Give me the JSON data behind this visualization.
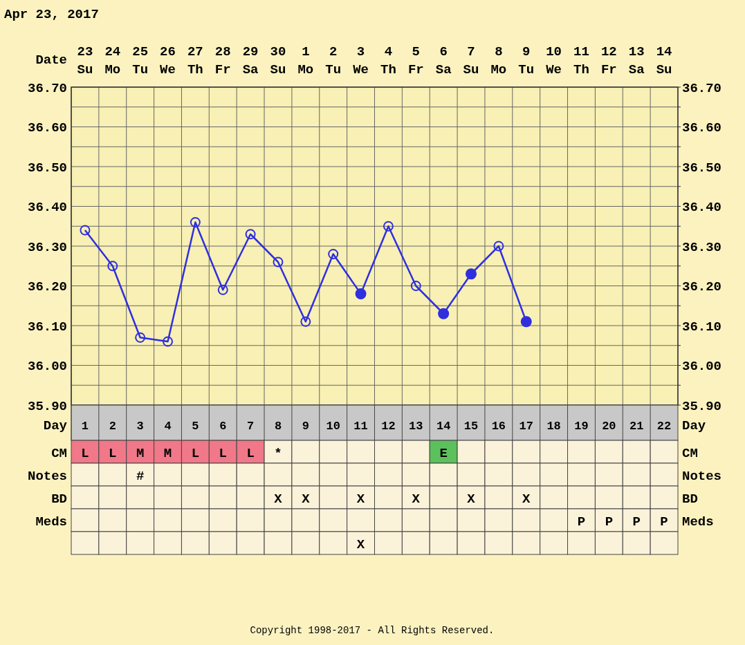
{
  "chart_data": [
    {
      "type": "line",
      "title": "Apr 23, 2017",
      "xlabel": "Date",
      "categories": [
        "23 Su",
        "24 Mo",
        "25 Tu",
        "26 We",
        "27 Th",
        "28 Fr",
        "29 Sa",
        "30 Su",
        "1 Mo",
        "2 Tu",
        "3 We",
        "4 Th",
        "5 Fr",
        "6 Sa",
        "7 Su",
        "8 Mo",
        "9 Tu",
        "10 We",
        "11 Th",
        "12 Fr",
        "13 Sa",
        "14 Su"
      ],
      "series": [
        {
          "type": "line",
          "color": "#2f2fe0",
          "marker": "circle",
          "values": [
            36.34,
            36.25,
            36.07,
            36.06,
            36.36,
            36.19,
            36.33,
            36.26,
            36.11,
            36.28,
            36.18,
            36.35,
            36.2,
            36.13,
            36.23,
            36.3,
            36.11,
            null,
            null,
            null,
            null,
            null
          ]
        },
        {
          "type": "scatter",
          "color": "#2f2fe0",
          "marker": "circle",
          "values": [
            null,
            null,
            null,
            null,
            null,
            null,
            null,
            null,
            null,
            null,
            36.18,
            null,
            null,
            36.13,
            36.23,
            null,
            36.11,
            null,
            null,
            null,
            null,
            null
          ]
        }
      ],
      "ylim": [
        35.9,
        36.7
      ],
      "yticks": [
        {
          "value": 35.9,
          "label": "35.90"
        },
        {
          "value": 35.95,
          "label": null
        },
        {
          "value": 36.0,
          "label": "36.00"
        },
        {
          "value": 36.05,
          "label": null
        },
        {
          "value": 36.1,
          "label": "36.10"
        },
        {
          "value": 36.15,
          "label": null
        },
        {
          "value": 36.2,
          "label": "36.20"
        },
        {
          "value": 36.25,
          "label": null
        },
        {
          "value": 36.3,
          "label": "36.30"
        },
        {
          "value": 36.35,
          "label": null
        },
        {
          "value": 36.4,
          "label": "36.40"
        },
        {
          "value": 36.45,
          "label": null
        },
        {
          "value": 36.5,
          "label": "36.50"
        },
        {
          "value": 36.55,
          "label": null
        },
        {
          "value": 36.6,
          "label": "36.60"
        },
        {
          "value": 36.65,
          "label": null
        },
        {
          "value": 36.7,
          "label": "36.70"
        }
      ],
      "y2lim": [
        35.9,
        36.7
      ],
      "y2ticks": [
        {
          "value": 35.9,
          "label": "35.90"
        },
        {
          "value": 35.95,
          "label": null
        },
        {
          "value": 36.0,
          "label": "36.00"
        },
        {
          "value": 36.05,
          "label": null
        },
        {
          "value": 36.1,
          "label": "36.10"
        },
        {
          "value": 36.15,
          "label": null
        },
        {
          "value": 36.2,
          "label": "36.20"
        },
        {
          "value": 36.25,
          "label": null
        },
        {
          "value": 36.3,
          "label": "36.30"
        },
        {
          "value": 36.35,
          "label": null
        },
        {
          "value": 36.4,
          "label": "36.40"
        },
        {
          "value": 36.45,
          "label": null
        },
        {
          "value": 36.5,
          "label": "36.50"
        },
        {
          "value": 36.55,
          "label": null
        },
        {
          "value": 36.6,
          "label": "36.60"
        },
        {
          "value": 36.65,
          "label": null
        },
        {
          "value": 36.7,
          "label": "36.70"
        }
      ],
      "grid": true
    },
    {
      "type": "heatmap",
      "xlabel": "Day",
      "categories": [
        "1",
        "2",
        "3",
        "4",
        "5",
        "6",
        "7",
        "8",
        "9",
        "10",
        "11",
        "12",
        "13",
        "14",
        "15",
        "16",
        "17",
        "18",
        "19",
        "20",
        "21",
        "22"
      ],
      "y_categories": [
        "CM",
        "Notes",
        "BD",
        "Meds"
      ],
      "y2_categories": [
        "CM",
        "Notes",
        "BD",
        "Meds"
      ],
      "cells": [
        [
          null,
          null,
          null,
          null,
          null,
          null,
          null,
          null,
          null,
          null,
          null,
          null,
          null,
          null,
          null,
          null,
          null,
          null,
          null,
          null,
          null,
          null
        ],
        [
          null,
          null,
          null,
          null,
          null,
          null,
          null,
          null,
          null,
          null,
          null,
          null,
          null,
          null,
          null,
          null,
          null,
          null,
          null,
          null,
          null,
          null
        ],
        [
          null,
          null,
          null,
          null,
          null,
          null,
          null,
          null,
          null,
          null,
          null,
          null,
          null,
          null,
          null,
          null,
          null,
          null,
          null,
          null,
          null,
          null
        ],
        [
          null,
          null,
          null,
          null,
          null,
          null,
          null,
          null,
          null,
          null,
          null,
          null,
          null,
          null,
          null,
          null,
          null,
          null,
          null,
          null,
          null,
          null
        ]
      ],
      "cell_labels": [
        [
          "L",
          "L",
          "M",
          "M",
          "L",
          "L",
          "L",
          "*",
          null,
          null,
          null,
          null,
          null,
          "E",
          null,
          null,
          null,
          null,
          null,
          null,
          null,
          null
        ],
        [
          null,
          null,
          "#",
          null,
          null,
          null,
          null,
          null,
          null,
          null,
          null,
          null,
          null,
          null,
          null,
          null,
          null,
          null,
          null,
          null,
          null,
          null
        ],
        [
          null,
          null,
          null,
          null,
          null,
          null,
          null,
          "X",
          "X",
          null,
          "X",
          null,
          "X",
          null,
          "X",
          null,
          "X",
          null,
          null,
          null,
          null,
          null
        ],
        [
          null,
          null,
          null,
          null,
          null,
          null,
          null,
          null,
          null,
          null,
          null,
          null,
          null,
          null,
          null,
          null,
          null,
          null,
          "P",
          "P",
          "P",
          "P"
        ]
      ],
      "colors": [
        [
          "#f07888",
          "#f07888",
          "#f07888",
          "#f07888",
          "#f07888",
          "#f07888",
          "#f07888",
          null,
          null,
          null,
          null,
          null,
          null,
          "#5cc05c",
          null,
          null,
          null,
          null,
          null,
          null,
          null,
          null
        ],
        [
          null,
          null,
          null,
          null,
          null,
          null,
          null,
          null,
          null,
          null,
          null,
          null,
          null,
          null,
          null,
          null,
          null,
          null,
          null,
          null,
          null,
          null
        ],
        [
          null,
          null,
          null,
          null,
          null,
          null,
          null,
          null,
          null,
          null,
          null,
          null,
          null,
          null,
          null,
          null,
          null,
          null,
          null,
          null,
          null,
          null
        ],
        [
          null,
          null,
          null,
          null,
          null,
          null,
          null,
          null,
          null,
          null,
          null,
          null,
          null,
          null,
          null,
          null,
          null,
          null,
          null,
          null,
          null,
          null
        ]
      ],
      "annotations": [
        "Copyright 1998-2017 - All Rights Reserved."
      ]
    },
    {
      "type": "other",
      "categories": [
        null,
        null,
        null,
        null,
        null,
        null,
        null,
        null,
        null,
        null,
        null,
        null,
        null,
        null,
        null,
        null,
        null,
        null,
        null,
        null,
        null,
        null
      ],
      "cell_labels": [
        [
          null,
          null,
          null,
          null,
          null,
          null,
          null,
          null,
          null,
          null,
          "X",
          null,
          null,
          null,
          null,
          null,
          null,
          null,
          null,
          null,
          null,
          null
        ]
      ]
    }
  ]
}
